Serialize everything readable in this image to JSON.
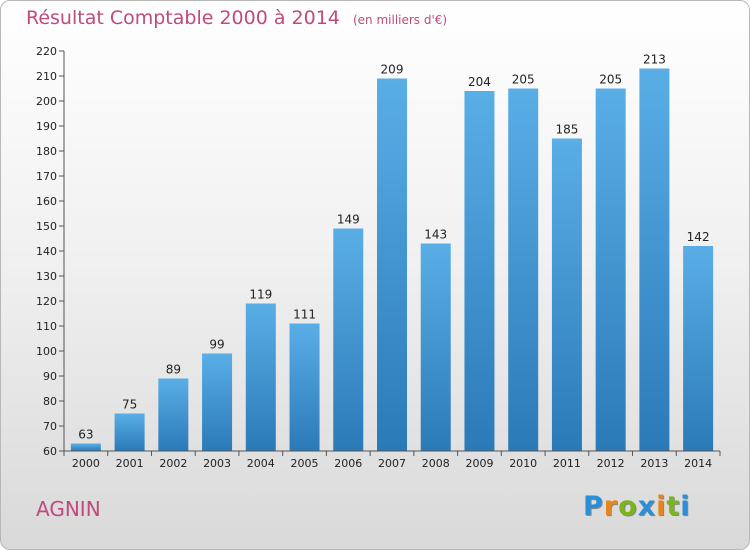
{
  "header": {
    "title": "Résultat Comptable 2000 à 2014",
    "subtitle": "(en milliers d'€)"
  },
  "location": "AGNIN",
  "logo": {
    "text": "Proxiti",
    "letters": [
      {
        "ch": "P",
        "color": "#2a8fd6"
      },
      {
        "ch": "r",
        "color": "#e8841a"
      },
      {
        "ch": "o",
        "color": "#7ab51d"
      },
      {
        "ch": "x",
        "color": "#2a8fd6"
      },
      {
        "ch": "i",
        "color": "#e8841a"
      },
      {
        "ch": "t",
        "color": "#7ab51d"
      },
      {
        "ch": "i",
        "color": "#2a8fd6"
      }
    ]
  },
  "chart_data": {
    "type": "bar",
    "title": "Résultat Comptable 2000 à 2014",
    "subtitle": "(en milliers d'€)",
    "categories": [
      "2000",
      "2001",
      "2002",
      "2003",
      "2004",
      "2005",
      "2006",
      "2007",
      "2008",
      "2009",
      "2010",
      "2011",
      "2012",
      "2013",
      "2014"
    ],
    "values": [
      63,
      75,
      89,
      99,
      119,
      111,
      149,
      209,
      143,
      204,
      205,
      185,
      205,
      213,
      142
    ],
    "ylim": [
      60,
      220
    ],
    "yticks": [
      60,
      70,
      80,
      90,
      100,
      110,
      120,
      130,
      140,
      150,
      160,
      170,
      180,
      190,
      200,
      210,
      220
    ],
    "grid": false,
    "bar_color_top": "#5aaee6",
    "bar_color_bottom": "#2a7ab8"
  }
}
